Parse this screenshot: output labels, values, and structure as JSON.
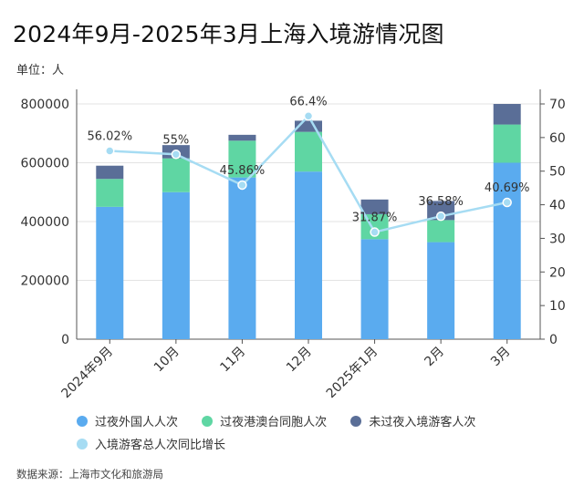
{
  "title": "2024年9月-2025年3月上海入境游情况图",
  "unit_label": "单位：人",
  "source": "数据来源：上海市文化和旅游局",
  "colors": {
    "foreign": "#5aabef",
    "hkmt": "#5fd6a3",
    "daytrip": "#5a6e97",
    "growth": "#a6dcf3"
  },
  "chart_data": {
    "type": "bar",
    "stacked": true,
    "categories": [
      "2024年9月",
      "10月",
      "11月",
      "12月",
      "2025年1月",
      "2月",
      "3月"
    ],
    "series": [
      {
        "name": "过夜外国人人次",
        "values": [
          450000,
          500000,
          550000,
          570000,
          340000,
          330000,
          600000
        ]
      },
      {
        "name": "过夜港澳台同胞人次",
        "values": [
          95000,
          115000,
          125000,
          135000,
          85000,
          75000,
          130000
        ]
      },
      {
        "name": "未过夜入境游客人次",
        "values": [
          45000,
          45000,
          20000,
          38000,
          50000,
          65000,
          70000
        ]
      }
    ],
    "line_series": {
      "name": "入境游客总人次同比增长",
      "values": [
        56.02,
        55,
        45.86,
        66.4,
        31.87,
        36.58,
        40.69
      ],
      "labels": [
        "56.02%",
        "55%",
        "45.86%",
        "66.4%",
        "31.87%",
        "36.58%",
        "40.69%"
      ]
    },
    "y_left": {
      "min": 0,
      "max": 800000,
      "ticks": [
        0,
        200000,
        400000,
        600000,
        800000
      ]
    },
    "y_right": {
      "min": 0,
      "max": 70,
      "ticks": [
        0,
        10,
        20,
        30,
        40,
        50,
        60,
        70
      ]
    },
    "grid": true,
    "legend_position": "bottom"
  }
}
